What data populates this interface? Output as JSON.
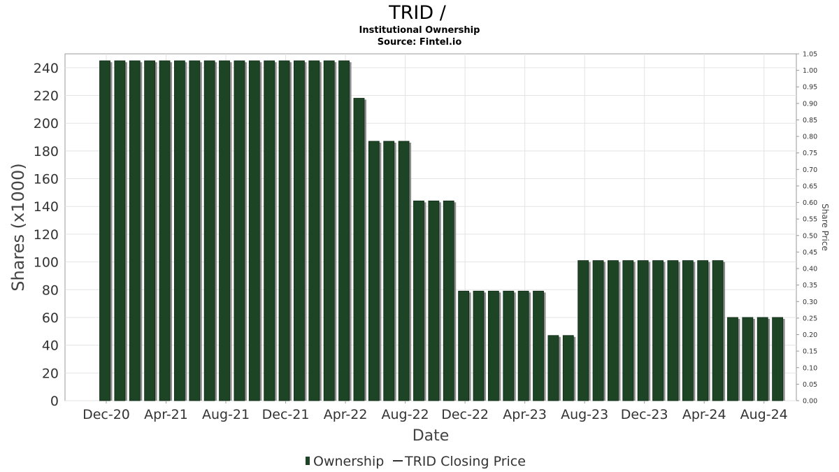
{
  "chart_data": {
    "type": "bar",
    "title": "TRID /",
    "subtitle_lines": [
      "Institutional Ownership",
      "Source: Fintel.io"
    ],
    "xlabel": "Date",
    "ylabel": "Shares (x1000)",
    "y2label": "Share Price",
    "ylim": [
      0,
      250
    ],
    "y2lim": [
      0,
      1.05
    ],
    "yticks": [
      0,
      20,
      40,
      60,
      80,
      100,
      120,
      140,
      160,
      180,
      200,
      220,
      240
    ],
    "y2ticks": [
      "0.00",
      "0.05",
      "0.10",
      "0.15",
      "0.20",
      "0.25",
      "0.30",
      "0.35",
      "0.40",
      "0.45",
      "0.50",
      "0.55",
      "0.60",
      "0.65",
      "0.70",
      "0.75",
      "0.80",
      "0.85",
      "0.90",
      "0.95",
      "1.00",
      "1.05"
    ],
    "x_tick_labels": [
      "Dec-20",
      "Apr-21",
      "Aug-21",
      "Dec-21",
      "Apr-22",
      "Aug-22",
      "Dec-22",
      "Apr-23",
      "Aug-23",
      "Dec-23",
      "Apr-24",
      "Aug-24"
    ],
    "grid": true,
    "legend_position": "bottom",
    "series": [
      {
        "name": "Ownership",
        "color": "#1e4426",
        "values": [
          245,
          245,
          245,
          245,
          245,
          245,
          245,
          245,
          245,
          245,
          245,
          245,
          245,
          245,
          245,
          245,
          245,
          218,
          187,
          187,
          187,
          144,
          144,
          144,
          79,
          79,
          79,
          79,
          79,
          79,
          47,
          47,
          101,
          101,
          101,
          101,
          101,
          101,
          101,
          101,
          101,
          101,
          60,
          60,
          60,
          60
        ]
      }
    ],
    "legend": [
      {
        "label": "Ownership",
        "marker": "bar",
        "color": "#1e4426"
      },
      {
        "label": "TRID Closing Price",
        "marker": "line",
        "color": "#333333"
      }
    ]
  }
}
